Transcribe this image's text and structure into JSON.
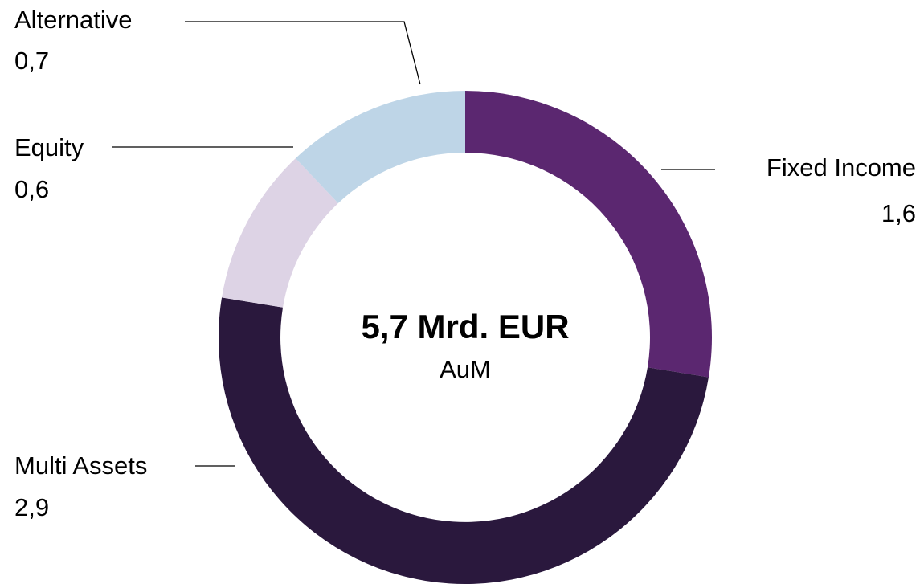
{
  "chart_data": {
    "type": "donut",
    "categories": [
      "Fixed Income",
      "Multi Assets",
      "Equity",
      "Alternative"
    ],
    "values": [
      1.6,
      2.9,
      0.6,
      0.7
    ],
    "value_labels": [
      "1,6",
      "2,9",
      "0,6",
      "0,7"
    ],
    "colors": [
      "#5b2770",
      "#2a183d",
      "#ddd3e5",
      "#bed5e7"
    ],
    "annotations": [
      "5,7 Mrd. EUR",
      "AuM"
    ]
  }
}
